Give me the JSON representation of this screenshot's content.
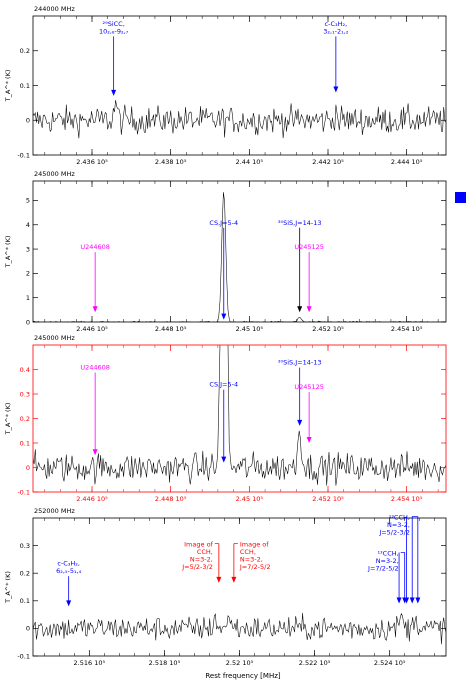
{
  "xlabel": "Rest frequency [MHz]",
  "blue_marker_color": "#0000ff",
  "chart_data": [
    {
      "type": "line",
      "corner_label": "244000 MHz",
      "ylabel": "T_A^* (K)",
      "frame_color": "#000000",
      "xlim": [
        243450,
        244500
      ],
      "ylim": [
        -0.1,
        0.3
      ],
      "xticks": [
        {
          "v": 243600,
          "label": "2.436 10⁵"
        },
        {
          "v": 243800,
          "label": "2.438 10⁵"
        },
        {
          "v": 244000,
          "label": "2.44 10⁵"
        },
        {
          "v": 244200,
          "label": "2.442 10⁵"
        },
        {
          "v": 244400,
          "label": "2.444 10⁵"
        }
      ],
      "yticks": [
        {
          "v": -0.1,
          "label": "-0.1"
        },
        {
          "v": 0,
          "label": "0"
        },
        {
          "v": 0.1,
          "label": "0.1"
        },
        {
          "v": 0.2,
          "label": "0.2"
        }
      ],
      "spectrum": {
        "noise": 0.02,
        "features": [
          {
            "x": 243660,
            "height": 0.05,
            "width": 4
          },
          {
            "x": 244220,
            "height": 0.025,
            "width": 3
          }
        ]
      },
      "annotations": [
        {
          "text": [
            "²⁹SiCC,",
            "10₂,₈-9₂,₇"
          ],
          "x": 243655,
          "ylabel": 0.25,
          "yhead": 0.07,
          "color": "#0000ff"
        },
        {
          "text": [
            "c-C₃H₂,",
            "3₂,₁-2₁,₂"
          ],
          "x": 244220,
          "ylabel": 0.25,
          "yhead": 0.08,
          "color": "#0000ff"
        }
      ]
    },
    {
      "type": "line",
      "corner_label": "245000 MHz",
      "ylabel": "T_A^* (K)",
      "frame_color": "#000000",
      "xlim": [
        244450,
        245500
      ],
      "ylim": [
        0,
        5.8
      ],
      "xticks": [
        {
          "v": 244600,
          "label": "2.446 10⁵"
        },
        {
          "v": 244800,
          "label": "2.448 10⁵"
        },
        {
          "v": 245000,
          "label": "2.45 10⁵"
        },
        {
          "v": 245200,
          "label": "2.452 10⁵"
        },
        {
          "v": 245400,
          "label": "2.454 10⁵"
        }
      ],
      "yticks": [
        {
          "v": 0,
          "label": "0"
        },
        {
          "v": 1,
          "label": "1"
        },
        {
          "v": 2,
          "label": "2"
        },
        {
          "v": 3,
          "label": "3"
        },
        {
          "v": 4,
          "label": "4"
        },
        {
          "v": 5,
          "label": "5"
        }
      ],
      "spectrum": {
        "noise": 0.015,
        "features": [
          {
            "x": 244935,
            "height": 5.4,
            "width": 5
          },
          {
            "x": 245128,
            "height": 0.18,
            "width": 5
          }
        ]
      },
      "annotations": [
        {
          "text": [
            "CS,J=5-4"
          ],
          "x": 244935,
          "ylabel": 4.0,
          "yhead": 0.1,
          "color": "#0000ff"
        },
        {
          "text": [
            "³⁰SiS,J=14-13"
          ],
          "x": 245128,
          "ylabel": 4.0,
          "yhead": 0.4,
          "color": "#000000",
          "label_color": "#0000ff"
        },
        {
          "text": [
            "U244608"
          ],
          "x": 244608,
          "ylabel": 3.0,
          "yhead": 0.4,
          "color": "#ff00ff"
        },
        {
          "text": [
            "U245125"
          ],
          "x": 245152,
          "ylabel": 3.0,
          "yhead": 0.4,
          "color": "#ff00ff"
        }
      ]
    },
    {
      "type": "line",
      "corner_label": "245000 MHz",
      "ylabel": "T_A^* (K)",
      "frame_color": "#ff0000",
      "xlim": [
        244450,
        245500
      ],
      "ylim": [
        -0.1,
        0.5
      ],
      "xticks": [
        {
          "v": 244600,
          "label": "2.446 10⁵"
        },
        {
          "v": 244800,
          "label": "2.448 10⁵"
        },
        {
          "v": 245000,
          "label": "2.45 10⁵"
        },
        {
          "v": 245200,
          "label": "2.452 10⁵"
        },
        {
          "v": 245400,
          "label": "2.454 10⁵"
        }
      ],
      "yticks": [
        {
          "v": -0.1,
          "label": "-0.1"
        },
        {
          "v": 0,
          "label": "0"
        },
        {
          "v": 0.1,
          "label": "0.1"
        },
        {
          "v": 0.2,
          "label": "0.2"
        },
        {
          "v": 0.3,
          "label": "0.3"
        },
        {
          "v": 0.4,
          "label": "0.4"
        }
      ],
      "spectrum": {
        "noise": 0.03,
        "features": [
          {
            "x": 244935,
            "height": 5.4,
            "width": 5
          },
          {
            "x": 245128,
            "height": 0.15,
            "width": 5
          }
        ]
      },
      "annotations": [
        {
          "text": [
            "CS,J=5-4"
          ],
          "x": 244935,
          "ylabel": 0.33,
          "yhead": 0.02,
          "color": "#0000ff"
        },
        {
          "text": [
            "³⁰SiS,J=14-13"
          ],
          "x": 245128,
          "ylabel": 0.42,
          "yhead": 0.17,
          "color": "#0000ff"
        },
        {
          "text": [
            "U244608"
          ],
          "x": 244608,
          "ylabel": 0.4,
          "yhead": 0.05,
          "color": "#ff00ff"
        },
        {
          "text": [
            "U245125"
          ],
          "x": 245152,
          "ylabel": 0.32,
          "yhead": 0.1,
          "color": "#ff00ff"
        }
      ]
    },
    {
      "type": "line",
      "corner_label": "252000 MHz",
      "ylabel": "T_A^* (K)",
      "frame_color": "#000000",
      "xlim": [
        251450,
        252550
      ],
      "ylim": [
        -0.1,
        0.4
      ],
      "xticks": [
        {
          "v": 251600,
          "label": "2.516 10⁵"
        },
        {
          "v": 251800,
          "label": "2.518 10⁵"
        },
        {
          "v": 252000,
          "label": "2.52 10⁵"
        },
        {
          "v": 252200,
          "label": "2.522 10⁵"
        },
        {
          "v": 252400,
          "label": "2.524 10⁵"
        }
      ],
      "yticks": [
        {
          "v": -0.1,
          "label": "-0.1"
        },
        {
          "v": 0,
          "label": "0"
        },
        {
          "v": 0.1,
          "label": "0.1"
        },
        {
          "v": 0.2,
          "label": "0.2"
        },
        {
          "v": 0.3,
          "label": "0.3"
        }
      ],
      "spectrum": {
        "noise": 0.022,
        "features": [
          {
            "x": 251935,
            "height": 0.04,
            "width": 4
          },
          {
            "x": 251975,
            "height": 0.05,
            "width": 4
          },
          {
            "x": 252430,
            "height": 0.04,
            "width": 5
          },
          {
            "x": 252470,
            "height": 0.045,
            "width": 5
          }
        ]
      },
      "annotations": [
        {
          "text": [
            "c-C₃H₂,",
            "6₂,₅-5₁,₄"
          ],
          "x": 251545,
          "ylabel": 0.2,
          "yhead": 0.08,
          "color": "#0000ff"
        },
        {
          "text": [
            "Image of",
            "CCH,",
            "N=3-2,",
            "J=5/2-3/2"
          ],
          "x": 251945,
          "ylabel": 0.215,
          "yhead": 0.165,
          "color": "#ff0000",
          "label_side": "left"
        },
        {
          "text": [
            "Image of",
            "CCH,",
            "N=3-2,",
            "J=7/2-5/2"
          ],
          "x": 251985,
          "ylabel": 0.215,
          "yhead": 0.165,
          "color": "#ff0000",
          "label_side": "right"
        },
        {
          "text": [
            "¹³CCH,",
            "N=3-2,",
            "J=5/2-3/2"
          ],
          "x": 252470,
          "ylabel": 0.34,
          "yhead": 0.09,
          "color": "#0000ff",
          "multi": [
            252445,
            252460,
            252475
          ],
          "label_side": "left"
        },
        {
          "text": [
            "¹³CCH,",
            "N=3-2,",
            "J=7/2-5/2"
          ],
          "x": 252440,
          "ylabel": 0.21,
          "yhead": 0.09,
          "color": "#0000ff",
          "multi": [
            252425,
            252440
          ],
          "label_side": "left"
        }
      ]
    }
  ]
}
